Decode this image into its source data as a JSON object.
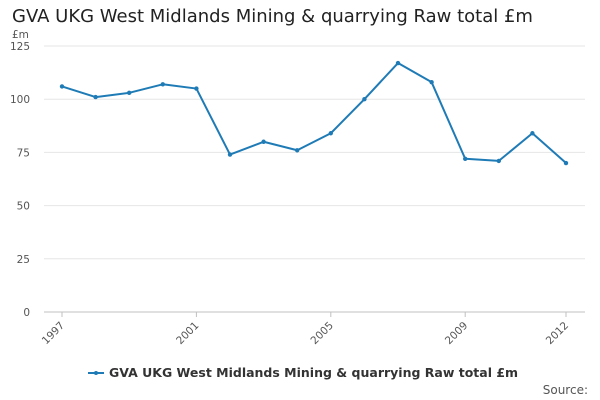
{
  "chart_data": {
    "type": "line",
    "title": "GVA UKG West Midlands Mining & quarrying Raw total £m",
    "ylabel": "£m",
    "xlabel": "",
    "x": [
      1997,
      1998,
      1999,
      2000,
      2001,
      2002,
      2003,
      2004,
      2005,
      2006,
      2007,
      2008,
      2009,
      2010,
      2011,
      2012
    ],
    "x_tick_labels": [
      "1997",
      "2001",
      "2005",
      "2009",
      "2012"
    ],
    "y_ticks": [
      0,
      25,
      50,
      75,
      100,
      125
    ],
    "ylim": [
      0,
      125
    ],
    "series": [
      {
        "name": "GVA UKG West Midlands Mining & quarrying Raw total £m",
        "values": [
          106,
          101,
          103,
          107,
          105,
          74,
          80,
          76,
          84,
          100,
          117,
          108,
          72,
          71,
          84,
          70
        ]
      }
    ],
    "grid": true,
    "legend_position": "bottom-center",
    "source_label": "Source:",
    "line_color": "#1f7bb6"
  }
}
